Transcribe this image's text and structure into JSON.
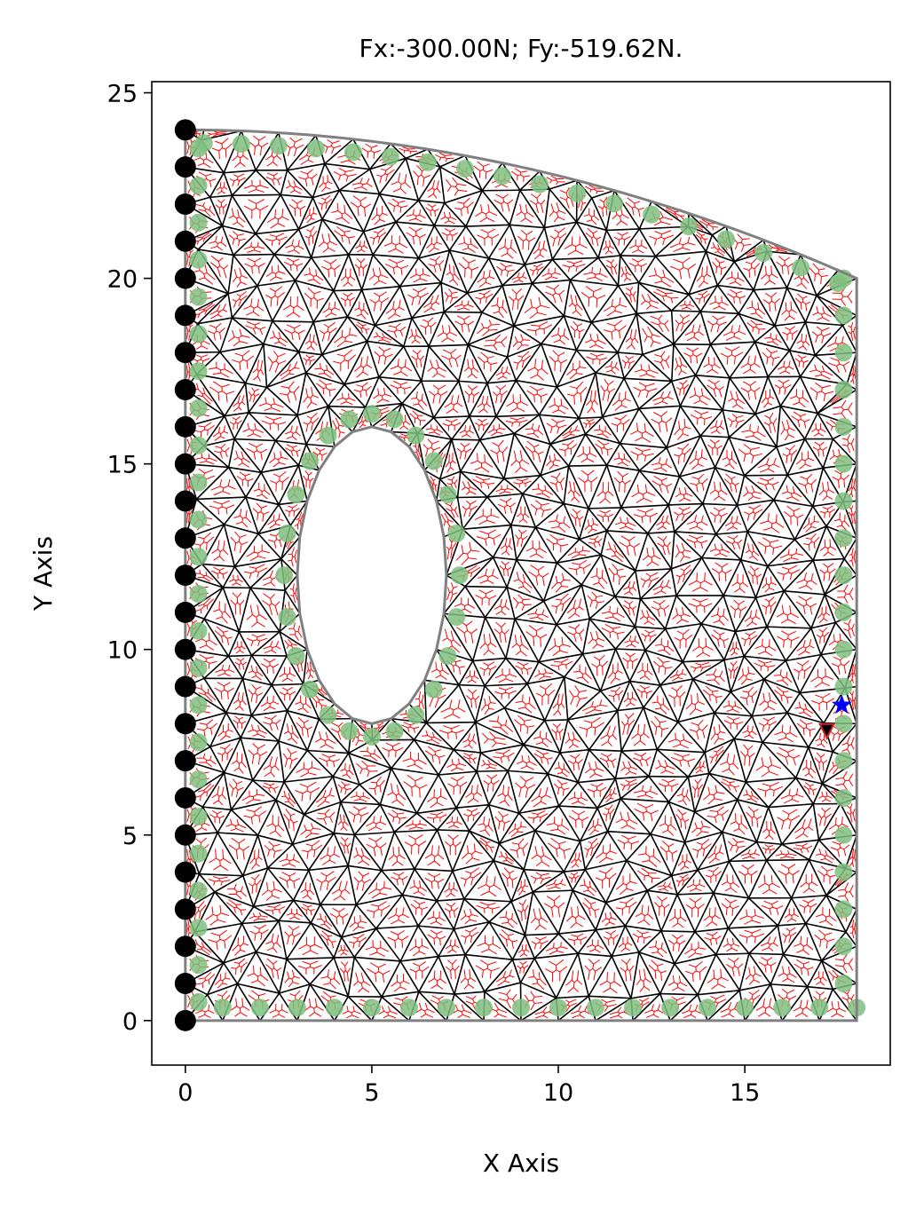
{
  "chart_data": {
    "type": "scatter",
    "title": "Fx:-300.00N; Fy:-519.62N.",
    "xlabel": "X Axis",
    "ylabel": "Y Axis",
    "xlim": [
      -0.9,
      18.9
    ],
    "ylim": [
      -1.2,
      25.3
    ],
    "xticks": [
      0,
      5,
      10,
      15
    ],
    "yticks": [
      0,
      5,
      10,
      15,
      20,
      25
    ],
    "xtick_labels": [
      "0",
      "5",
      "10",
      "15"
    ],
    "ytick_labels": [
      "0",
      "5",
      "10",
      "15",
      "20",
      "25"
    ],
    "grid": false,
    "domain": {
      "width": 18,
      "left_height": 24,
      "right_height": 20,
      "hole_center": [
        5,
        12
      ],
      "hole_radii": [
        2,
        4
      ]
    },
    "fixed_support_points": {
      "x": 0,
      "y": [
        0,
        1,
        2,
        3,
        4,
        5,
        6,
        7,
        8,
        9,
        10,
        11,
        12,
        13,
        14,
        15,
        16,
        17,
        18,
        19,
        20,
        21,
        22,
        23,
        24
      ]
    },
    "load_point": {
      "x": 17.6,
      "y": 8.5
    },
    "load_marker_nearby": {
      "x": 17.2,
      "y": 7.8
    },
    "colors": {
      "mesh_edges": "#000000",
      "dual_mesh_edges": "#ff0000",
      "boundary_outline": "#808080",
      "boundary_nodes": "#7fbf7f",
      "fixed_nodes": "#000000",
      "load_star": "#0000ff",
      "load_marker": "#d62728"
    }
  }
}
